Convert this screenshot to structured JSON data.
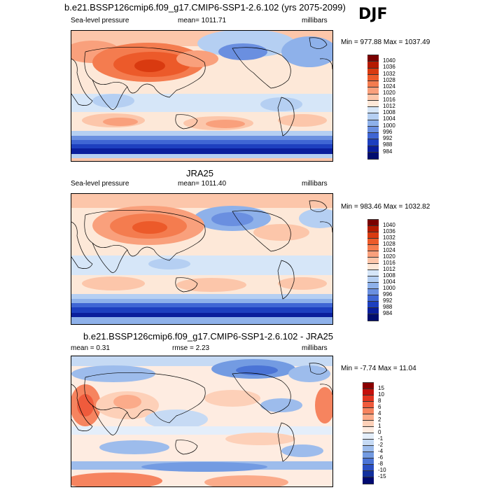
{
  "season": "DJF",
  "panels": [
    {
      "title": "b.e21.BSSP126cmip6.f09_g17.CMIP6-SSP1-2.6.102 (yrs 2075-2099)",
      "left_label": "Sea-level pressure",
      "center_label": "mean= 1011.71",
      "right_label": "millibars",
      "minmax": "Min = 977.88 Max = 1037.49",
      "colorbar": [
        "1040",
        "1036",
        "1032",
        "1028",
        "1024",
        "1020",
        "1016",
        "1012",
        "1008",
        "1004",
        "1000",
        "996",
        "992",
        "988",
        "984"
      ]
    },
    {
      "title": "JRA25",
      "left_label": "Sea-level pressure",
      "center_label": "mean= 1011.40",
      "right_label": "millibars",
      "minmax": "Min = 983.46 Max = 1032.82",
      "colorbar": [
        "1040",
        "1036",
        "1032",
        "1028",
        "1024",
        "1020",
        "1016",
        "1012",
        "1008",
        "1004",
        "1000",
        "996",
        "992",
        "988",
        "984"
      ]
    },
    {
      "title": "b.e21.BSSP126cmip6.f09_g17.CMIP6-SSP1-2.6.102 - JRA25",
      "left_label": "mean =   0.31",
      "center_label": "rmse =   2.23",
      "right_label": "millibars",
      "minmax": "Min =  -7.74 Max =  11.04",
      "colorbar": [
        "15",
        "10",
        "8",
        "6",
        "4",
        "2",
        "1",
        "0",
        "-1",
        "-2",
        "-4",
        "-6",
        "-8",
        "-10",
        "-15"
      ]
    }
  ],
  "colors": {
    "abs_scale": [
      "#7a0000",
      "#b51a00",
      "#d93a10",
      "#ec5a2a",
      "#f47c4f",
      "#f9a07c",
      "#fcc6aa",
      "#fde8d8",
      "#d6e6f8",
      "#b5cff2",
      "#8eb1ea",
      "#6a8fe0",
      "#3f66d4",
      "#1d3fbf",
      "#0a1e9c",
      "#000c6e"
    ],
    "diff_scale": [
      "#8a0000",
      "#c4100b",
      "#e2341f",
      "#ef5b3c",
      "#f6845f",
      "#fbab8a",
      "#fdd0b8",
      "#feece1",
      "#e4eefa",
      "#c6daf4",
      "#9dbcec",
      "#739be2",
      "#4b74d6",
      "#2a4fc2",
      "#12309e",
      "#000a70"
    ]
  }
}
